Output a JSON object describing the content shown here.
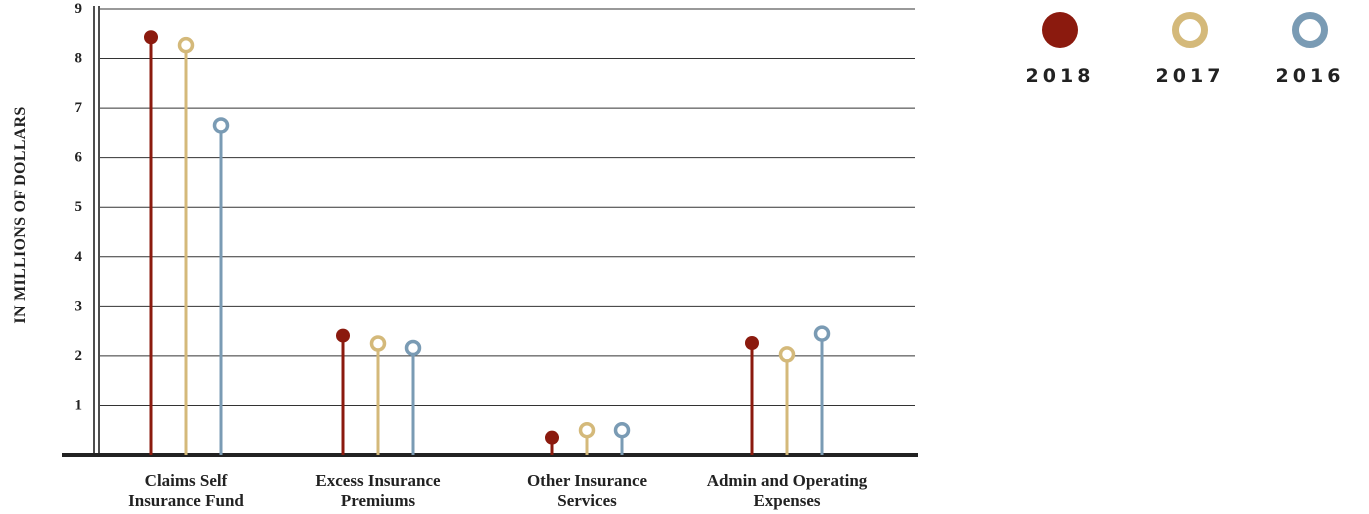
{
  "chart_data": {
    "type": "lollipop",
    "ylabel": "IN MILLIONS OF DOLLARS",
    "ylim": [
      0,
      9
    ],
    "yticks": [
      "1",
      "2",
      "3",
      "4",
      "5",
      "6",
      "7",
      "8",
      "9"
    ],
    "grid": true,
    "legend_position": "top-right",
    "categories": [
      [
        "Claims Self",
        "Insurance Fund"
      ],
      [
        "Excess Insurance",
        "Premiums"
      ],
      [
        "Other Insurance",
        "Services"
      ],
      [
        "Admin and Operating",
        "Expenses"
      ]
    ],
    "series": [
      {
        "name": "2018",
        "color": "#8b1a0e",
        "marker": "filled",
        "values": [
          8.43,
          2.41,
          0.35,
          2.26
        ]
      },
      {
        "name": "2017",
        "color": "#d4b97a",
        "marker": "open",
        "values": [
          8.27,
          2.25,
          0.5,
          2.03
        ]
      },
      {
        "name": "2016",
        "color": "#7a9bb4",
        "marker": "open",
        "values": [
          6.65,
          2.16,
          0.5,
          2.45
        ]
      }
    ]
  }
}
